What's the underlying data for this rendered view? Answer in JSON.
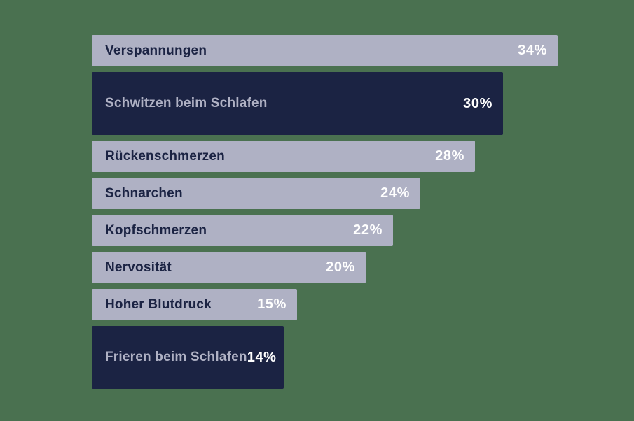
{
  "chart_data": {
    "type": "bar",
    "orientation": "horizontal",
    "title": "",
    "xlabel": "",
    "ylabel": "",
    "grid": false,
    "legend": false,
    "xlim": [
      0,
      34
    ],
    "categories": [
      "Verspannungen",
      "Schwitzen beim Schlafen",
      "Rückenschmerzen",
      "Schnarchen",
      "Kopfschmerzen",
      "Nervosität",
      "Hoher Blutdruck",
      "Frieren beim Schlafen"
    ],
    "values": [
      34,
      30,
      28,
      24,
      22,
      20,
      15,
      14
    ],
    "value_labels": [
      "34%",
      "30%",
      "28%",
      "24%",
      "22%",
      "20%",
      "15%",
      "14%"
    ],
    "highlighted": [
      false,
      true,
      false,
      false,
      false,
      false,
      false,
      true
    ]
  },
  "colors": {
    "background": "#4A7150",
    "bar_default": "#AFB1C4",
    "bar_highlight": "#1B2343",
    "label_on_default": "#1B2343",
    "label_on_highlight": "#AFB1C4",
    "value_text": "#FFFFFF"
  }
}
